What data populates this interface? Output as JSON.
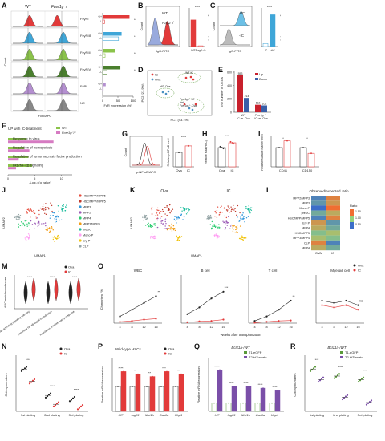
{
  "panel_letters": [
    "A",
    "B",
    "C",
    "D",
    "E",
    "F",
    "G",
    "H",
    "I",
    "J",
    "K",
    "L",
    "M",
    "N",
    "O",
    "P",
    "Q",
    "R"
  ],
  "colors": {
    "wt": "#888888",
    "ko": "#e23a3a",
    "ova": "#222222",
    "ic": "#e23a3a",
    "up": "#c8202c",
    "down": "#3a5fa8",
    "fcgr1": "#e23a3a",
    "fcgr2b": "#3fa6d8",
    "fcgr3": "#8bc34a",
    "fcgr4": "#4a7f2d",
    "fcgri": "#b48fd0",
    "nc": "#999999",
    "tegfp": "#5a9a3a",
    "ttdtomato": "#7a4fa8"
  },
  "A": {
    "header_wt": "WT",
    "header_ko": "Fcer1g⁻/⁻",
    "rows": [
      "FcγRI",
      "FcγRIIB",
      "FcγRIII",
      "FcγRIV",
      "FcRI",
      "NC"
    ],
    "x_axis": "FcR/APC",
    "y_axis": "Count",
    "bar_xlabel": "FcR expression (%)",
    "genotype_pair": [
      "+/+",
      "-/-"
    ],
    "chart_data": {
      "type": "bar",
      "categories": [
        "FcγRI",
        "FcγRIIB",
        "FcγRIII",
        "FcγRIV",
        "FcRI"
      ],
      "series": [
        {
          "name": "+/+",
          "values": [
            88,
            62,
            40,
            58,
            10
          ]
        },
        {
          "name": "-/-",
          "values": [
            6,
            52,
            8,
            14,
            2
          ]
        }
      ],
      "xlim": [
        0,
        100
      ],
      "ticks": [
        "0",
        "50",
        "100"
      ],
      "sig": [
        "****",
        "*",
        "****",
        "****",
        ""
      ]
    }
  },
  "B": {
    "legend": [
      "WT",
      "Rag2⁻/⁻"
    ],
    "x_axis": "IgG-FITC",
    "y_axis": "Count",
    "bar_ylabel": "IgG Positive cells (%)",
    "sig": "****",
    "chart_data": {
      "type": "bar",
      "categories": [
        "WT",
        "Rag2⁻/⁻"
      ],
      "values": [
        72,
        2
      ],
      "ylim": [
        0,
        100
      ]
    }
  },
  "C": {
    "legend": [
      "+IC",
      "-IC"
    ],
    "x_axis": "IgG-FITC",
    "y_axis": "Count",
    "bar_ylabel": "IgG Positive cells (%)",
    "sig": "****",
    "chart_data": {
      "type": "bar",
      "categories": [
        "-IC",
        "+IC"
      ],
      "values": [
        8,
        86
      ],
      "ylim": [
        0,
        100
      ]
    }
  },
  "D": {
    "legend": [
      "IC",
      "Ova"
    ],
    "x_axis": "PC1 (43.1%)",
    "y_axis": "PC2 (21.9%)",
    "annotations": [
      "WT-IC",
      "WT-Ova",
      "Fcer1g⁻/⁻-IC",
      "and",
      "Fcer1g⁻/⁻-Ova"
    ]
  },
  "E": {
    "legend": [
      "Up",
      "Down"
    ],
    "y_axis": "The number of DEGs",
    "chart_data": {
      "type": "bar",
      "categories": [
        "WT IC vs. Ova",
        "Fcer1g⁻/⁻ IC vs. Ova"
      ],
      "series": [
        {
          "name": "Up",
          "values": [
            553,
            112
          ]
        },
        {
          "name": "Down",
          "values": [
            214,
            102
          ]
        }
      ],
      "ylim": [
        0,
        600
      ],
      "labels": [
        "553",
        "214",
        "112",
        "102"
      ],
      "group_labels": [
        [
          "WT",
          "IC vs. Ova"
        ],
        [
          "Fcer1g⁻/⁻",
          "IC vs. Ova"
        ]
      ],
      "ticks": [
        "0",
        "200",
        "400",
        "600"
      ]
    }
  },
  "F": {
    "title": "UP with IC-treatment",
    "legend": [
      "WT",
      "Fcer1g⁻/⁻"
    ],
    "x_axis": "-Log₁₀ (q value)",
    "chart_data": {
      "type": "bar",
      "categories": [
        "Response to virus",
        "Regulation of hemopoiesis",
        "Regulation of tumor necrosis factor production",
        "I-κB/NF-κB signaling"
      ],
      "series": [
        {
          "name": "WT",
          "values": [
            3.5,
            3.0,
            3.8,
            4.5
          ]
        },
        {
          "name": "Fcer1g⁻/⁻",
          "values": [
            8.5,
            4.0,
            2.0,
            1.5
          ]
        }
      ],
      "xlim": [
        0,
        12
      ],
      "ticks": [
        "0",
        "5",
        "10"
      ]
    }
  },
  "G": {
    "x_axis": "p-NF-κB/APC",
    "y_axis": "Count",
    "bar_ylabel": "Relative p-NF-κB level",
    "categories": [
      "Ova",
      "IC"
    ],
    "sig": "****",
    "chart_data": {
      "type": "bar",
      "categories": [
        "Ova",
        "IC"
      ],
      "values": [
        1.0,
        1.45
      ],
      "ylim": [
        0,
        2
      ]
    }
  },
  "H": {
    "y_axis": "Relative Rad(HSC)",
    "categories": [
      "Ova",
      "IC"
    ],
    "sig": "***",
    "chart_data": {
      "type": "bar",
      "categories": [
        "Ova",
        "IC"
      ],
      "values": [
        1.0,
        1.25
      ],
      "ylim": [
        0,
        1.5
      ]
    }
  },
  "I": {
    "y_axis": "Relative surface marker level",
    "categories": [
      "CD41",
      "CD150"
    ],
    "sig": [
      "*",
      "*"
    ],
    "chart_data": {
      "type": "bar",
      "categories": [
        "CD41",
        "CD150"
      ],
      "series": [
        {
          "name": "Ova",
          "values": [
            1.0,
            1.0
          ]
        },
        {
          "name": "IC",
          "values": [
            1.35,
            0.7
          ]
        }
      ],
      "ylim": [
        0,
        1.5
      ]
    }
  },
  "J": {
    "x_axis": "UMAP1",
    "y_axis": "UMAP2",
    "legend": [
      "HSC/MPP/MPP5",
      "HSC/MPP/MPP5",
      "MPP3",
      "MPP2",
      "MPP4",
      "MPP3/MPP4",
      "preDC",
      "Mono-P",
      "Ery P",
      "CLP"
    ],
    "legend_colors": [
      "#e74c3c",
      "#c0392b",
      "#3498db",
      "#9b59b6",
      "#2ecc71",
      "#f39c12",
      "#1abc9c",
      "#ff9ff3",
      "#f1c40f",
      "#95a5a6"
    ]
  },
  "K": {
    "labels": [
      "Ova",
      "IC"
    ],
    "x_axis": "UMAP1",
    "y_axis": "UMAP2"
  },
  "L": {
    "title": "Observed/expected ratio",
    "rows": [
      "MPP2/MPP3",
      "MPP3",
      "Mono-P",
      "preDC",
      "HSC/MPP/MPP5",
      "Ery P",
      "MPP4",
      "HSC/MPP5",
      "MPP3/MPP4",
      "CLP",
      "MPP4"
    ],
    "columns": [
      "OVA",
      "IC"
    ],
    "ratio_title": "Ratio",
    "ratio_ticks": [
      "1.50",
      "1.00",
      "0.50"
    ],
    "chart_data": {
      "type": "heatmap",
      "values": [
        [
          0.6,
          1.4
        ],
        [
          0.7,
          1.3
        ],
        [
          0.5,
          1.5
        ],
        [
          0.8,
          1.2
        ],
        [
          0.6,
          1.4
        ],
        [
          1.3,
          0.7
        ],
        [
          1.2,
          0.8
        ],
        [
          0.9,
          1.1
        ],
        [
          1.1,
          0.9
        ],
        [
          1.4,
          0.6
        ],
        [
          1.2,
          0.8
        ]
      ]
    }
  },
  "M": {
    "legend": [
      "Ova",
      "IC"
    ],
    "y_axis": "AUC enrichment score",
    "categories": [
      "Immune response-activating signaling pathway",
      "Canonical NF-κB signal transduction",
      "Regulation of inflammatory response"
    ],
    "sig": [
      "****",
      "****",
      "****"
    ]
  },
  "N": {
    "legend": [
      "Ova",
      "IC"
    ],
    "y_axis": "Colony numbers",
    "categories": [
      "1st plating",
      "2nd plating",
      "3rd plating"
    ],
    "sig": [
      "****",
      "****",
      "****"
    ],
    "chart_data": {
      "type": "scatter",
      "categories": [
        "1st plating",
        "2nd plating",
        "3rd plating"
      ],
      "series": [
        {
          "name": "Ova",
          "values": [
            120,
            45,
            35
          ]
        },
        {
          "name": "IC",
          "values": [
            85,
            20,
            12
          ]
        }
      ],
      "ylim": [
        0,
        150
      ]
    }
  },
  "O": {
    "legend": [
      "Ova",
      "IC"
    ],
    "y_axis": "Chimerism (%)",
    "x_axis": "Weeks after transplantation",
    "titles": [
      "WBC",
      "B cell",
      "T cell",
      "Myeloid cell"
    ],
    "weeks": [
      "4",
      "8",
      "12",
      "16"
    ],
    "sig": [
      "**",
      "***",
      "**",
      "ns"
    ],
    "chart_data": [
      {
        "type": "line",
        "title": "WBC",
        "x": [
          4,
          8,
          12,
          16
        ],
        "series": [
          {
            "name": "Ova",
            "values": [
              15,
              30,
              45,
              60
            ]
          },
          {
            "name": "IC",
            "values": [
              3,
              5,
              8,
              10
            ]
          }
        ],
        "ylim": [
          0,
          100
        ]
      },
      {
        "type": "line",
        "title": "B cell",
        "x": [
          4,
          8,
          12,
          16
        ],
        "series": [
          {
            "name": "Ova",
            "values": [
              20,
              35,
              55,
              70
            ]
          },
          {
            "name": "IC",
            "values": [
              2,
              4,
              5,
              8
            ]
          }
        ],
        "ylim": [
          0,
          100
        ]
      },
      {
        "type": "line",
        "title": "T cell",
        "x": [
          4,
          8,
          12,
          16
        ],
        "series": [
          {
            "name": "Ova",
            "values": [
              5,
              15,
              30,
              50
            ]
          },
          {
            "name": "IC",
            "values": [
              1,
              3,
              5,
              6
            ]
          }
        ],
        "ylim": [
          0,
          100
        ]
      },
      {
        "type": "line",
        "title": "Myeloid cell",
        "x": [
          4,
          8,
          12,
          16
        ],
        "series": [
          {
            "name": "Ova",
            "values": [
              50,
              45,
              50,
              40
            ]
          },
          {
            "name": "IC",
            "values": [
              40,
              35,
              40,
              30
            ]
          }
        ],
        "ylim": [
          0,
          100
        ]
      }
    ]
  },
  "P": {
    "title": "Wild-type HSCs",
    "legend": [
      "Ova",
      "IC"
    ],
    "y_axis": "Relative mRNA expression",
    "genes": [
      "Irf7",
      "Isg15",
      "Mxt1h",
      "Oas1a",
      "Xbp1"
    ],
    "sig": [
      "****",
      "**",
      "**",
      "***",
      "**"
    ],
    "chart_data": {
      "type": "bar",
      "categories": [
        "Irf7",
        "Isg15",
        "Mxt1h",
        "Oas1a",
        "Xbp1"
      ],
      "series": [
        {
          "name": "Ova",
          "values": [
            1,
            1,
            1,
            1,
            1
          ]
        },
        {
          "name": "IC",
          "values": [
            1.6,
            1.5,
            1.4,
            1.6,
            1.5
          ]
        }
      ],
      "ylim": [
        0,
        2
      ]
    }
  },
  "Q": {
    "title": "Bcl11a-/WT",
    "legend": [
      "T1-eGFP",
      "T2-tdTomato"
    ],
    "y_axis": "Relative mRNA expression",
    "genes": [
      "Irf7",
      "Isg15",
      "Mxt1h",
      "Oas1a",
      "Xbp1"
    ],
    "sig": [
      "****",
      "****",
      "****",
      "****",
      "****"
    ],
    "chart_data": {
      "type": "bar",
      "categories": [
        "Irf7",
        "Isg15",
        "Mxt1h",
        "Oas1a",
        "Xbp1"
      ],
      "series": [
        {
          "name": "T1-eGFP",
          "values": [
            1,
            1,
            1,
            1,
            1
          ]
        },
        {
          "name": "T2-tdTomato",
          "values": [
            5,
            3,
            3,
            2.8,
            2.5
          ]
        }
      ],
      "ylim": [
        0,
        6
      ]
    }
  },
  "R": {
    "title": "Bcl11a-/WT",
    "legend": [
      "T1-eGFP",
      "T2-tdTomato"
    ],
    "y_axis": "Colony numbers",
    "categories": [
      "1st plating",
      "2nd plating",
      "3rd plating"
    ],
    "sig": [
      "***",
      "****",
      "****"
    ],
    "chart_data": {
      "type": "scatter",
      "categories": [
        "1st plating",
        "2nd plating",
        "3rd plating"
      ],
      "series": [
        {
          "name": "T1-eGFP",
          "values": [
            120,
            100,
            90
          ]
        },
        {
          "name": "T2-tdTomato",
          "values": [
            90,
            40,
            25
          ]
        }
      ],
      "ylim": [
        0,
        150
      ]
    }
  }
}
